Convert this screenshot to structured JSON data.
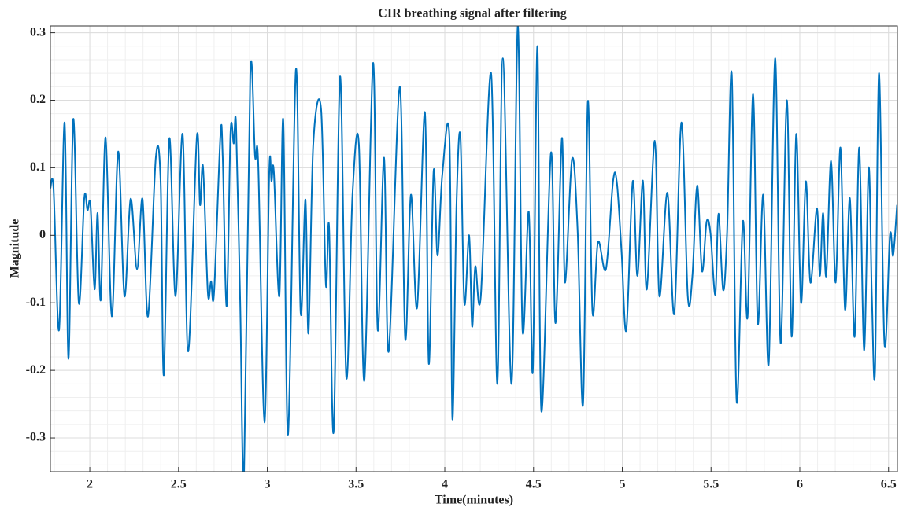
{
  "chart_data": {
    "type": "line",
    "title": "CIR breathing signal after filtering",
    "x_label": "Time(minutes)",
    "y_label": "Magnitude",
    "xlim": [
      1.778,
      6.55
    ],
    "ylim": [
      -0.35,
      0.31
    ],
    "xticks": [
      2,
      2.5,
      3,
      3.5,
      4,
      4.5,
      5,
      5.5,
      6,
      6.5
    ],
    "yticks": [
      -0.3,
      -0.2,
      -0.1,
      0,
      0.1,
      0.2,
      0.3
    ],
    "grid": true,
    "minor_grid": true,
    "x": [
      1.778,
      1.796,
      1.827,
      1.858,
      1.88,
      1.907,
      1.938,
      1.969,
      1.987,
      2.004,
      2.027,
      2.044,
      2.062,
      2.089,
      2.124,
      2.16,
      2.195,
      2.23,
      2.266,
      2.297,
      2.328,
      2.372,
      2.399,
      2.417,
      2.448,
      2.483,
      2.523,
      2.554,
      2.603,
      2.621,
      2.638,
      2.665,
      2.683,
      2.7,
      2.736,
      2.749,
      2.771,
      2.793,
      2.811,
      2.824,
      2.847,
      2.869,
      2.904,
      2.931,
      2.949,
      2.984,
      3.011,
      3.024,
      3.037,
      3.068,
      3.09,
      3.117,
      3.161,
      3.188,
      3.215,
      3.232,
      3.259,
      3.303,
      3.33,
      3.348,
      3.374,
      3.41,
      3.445,
      3.48,
      3.516,
      3.547,
      3.596,
      3.622,
      3.658,
      3.684,
      3.746,
      3.777,
      3.809,
      3.844,
      3.888,
      3.91,
      3.937,
      3.959,
      3.986,
      4.026,
      4.043,
      4.066,
      4.088,
      4.11,
      4.137,
      4.154,
      4.172,
      4.203,
      4.261,
      4.296,
      4.327,
      4.376,
      4.411,
      4.438,
      4.473,
      4.496,
      4.522,
      4.544,
      4.598,
      4.624,
      4.66,
      4.677,
      4.717,
      4.748,
      4.779,
      4.806,
      4.832,
      4.863,
      4.908,
      4.948,
      4.97,
      4.996,
      5.023,
      5.059,
      5.085,
      5.116,
      5.138,
      5.183,
      5.209,
      5.254,
      5.293,
      5.333,
      5.369,
      5.395,
      5.422,
      5.449,
      5.475,
      5.497,
      5.524,
      5.542,
      5.568,
      5.59,
      5.617,
      5.644,
      5.679,
      5.706,
      5.737,
      5.763,
      5.794,
      5.825,
      5.861,
      5.892,
      5.927,
      5.954,
      5.98,
      6.007,
      6.034,
      6.06,
      6.096,
      6.113,
      6.131,
      6.149,
      6.176,
      6.202,
      6.229,
      6.255,
      6.282,
      6.309,
      6.335,
      6.362,
      6.388,
      6.406,
      6.424,
      6.446,
      6.477,
      6.508,
      6.526,
      6.548
    ],
    "series": [
      {
        "color": "#0072bd",
        "values": [
          0.07,
          0.068,
          -0.14,
          0.167,
          -0.183,
          0.172,
          -0.1,
          0.055,
          0.037,
          0.045,
          -0.08,
          0.033,
          -0.095,
          0.145,
          -0.12,
          0.124,
          -0.09,
          0.054,
          -0.05,
          0.054,
          -0.12,
          0.115,
          0.08,
          -0.207,
          0.143,
          -0.09,
          0.15,
          -0.172,
          0.145,
          0.045,
          0.101,
          -0.085,
          -0.068,
          -0.085,
          0.148,
          0.115,
          -0.105,
          0.153,
          0.136,
          0.164,
          -0.095,
          -0.355,
          0.238,
          0.117,
          0.105,
          -0.277,
          0.094,
          0.08,
          0.094,
          -0.09,
          0.17,
          -0.295,
          0.245,
          -0.115,
          0.053,
          -0.145,
          0.135,
          0.187,
          -0.073,
          0.013,
          -0.29,
          0.235,
          -0.21,
          0.06,
          0.135,
          -0.215,
          0.255,
          -0.14,
          0.115,
          -0.172,
          0.22,
          -0.153,
          0.06,
          -0.107,
          0.182,
          -0.19,
          0.095,
          -0.03,
          0.09,
          0.145,
          -0.272,
          0.045,
          0.147,
          -0.1,
          0,
          -0.135,
          -0.046,
          -0.09,
          0.24,
          -0.22,
          0.262,
          -0.22,
          0.31,
          -0.14,
          0.035,
          -0.2,
          0.28,
          -0.26,
          0.122,
          -0.13,
          0.144,
          -0.07,
          0.113,
          0.009,
          -0.25,
          0.198,
          -0.113,
          -0.01,
          -0.05,
          0.08,
          0.077,
          -0.025,
          -0.14,
          0.08,
          -0.06,
          0.081,
          -0.08,
          0.14,
          -0.09,
          0.063,
          -0.116,
          0.167,
          -0.09,
          -0.06,
          0.074,
          -0.053,
          0.02,
          0.003,
          -0.088,
          0.032,
          -0.081,
          0.001,
          0.238,
          -0.245,
          0.02,
          -0.12,
          0.21,
          -0.13,
          0.06,
          -0.19,
          0.262,
          -0.16,
          0.2,
          -0.15,
          0.15,
          -0.1,
          0.08,
          -0.07,
          0.04,
          -0.06,
          0.033,
          -0.06,
          0.11,
          -0.07,
          0.13,
          -0.11,
          0.055,
          -0.15,
          0.13,
          -0.17,
          0.1,
          -0.09,
          -0.2,
          0.24,
          -0.16,
          0,
          -0.03,
          0.045
        ]
      }
    ]
  }
}
